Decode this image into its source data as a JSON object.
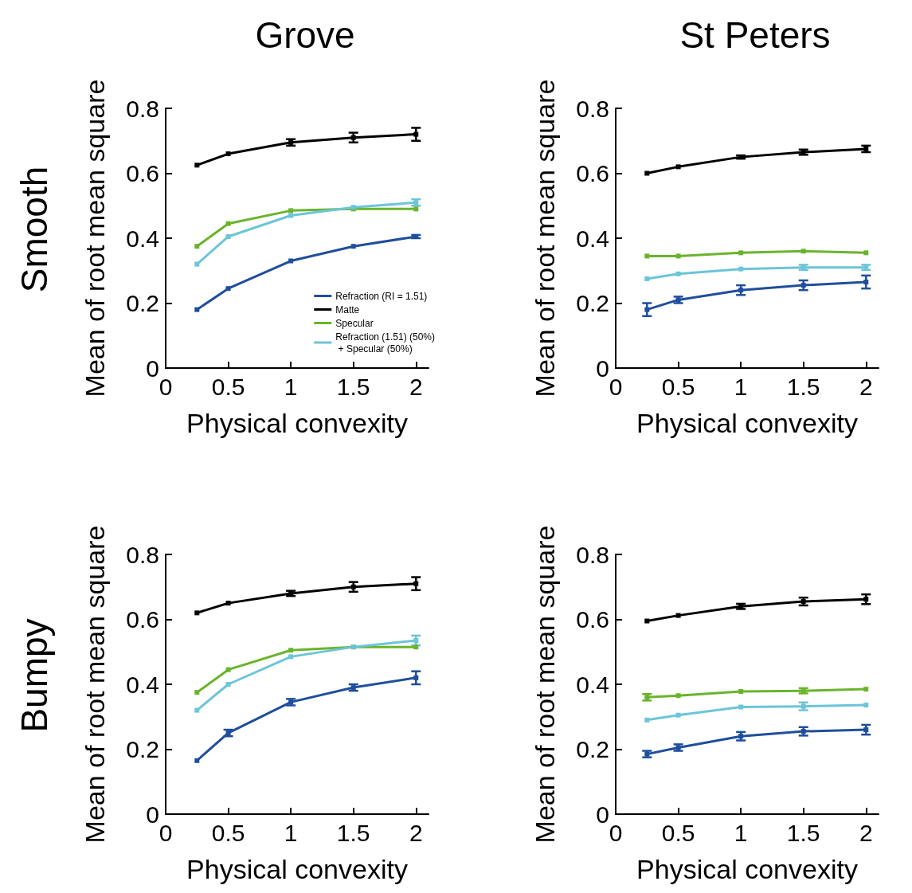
{
  "chart_data": [
    {
      "type": "line",
      "title": "Grove",
      "annotations": [
        "Smooth"
      ],
      "xlabel": "Physical convexity",
      "ylabel": "Mean of root mean square",
      "xlim": [
        0,
        2.1
      ],
      "xticks": [
        0,
        0.5,
        1,
        1.5,
        2
      ],
      "ylim": [
        0,
        0.8
      ],
      "yticks": [
        0,
        0.2,
        0.4,
        0.6,
        0.8
      ],
      "x": [
        0.25,
        0.5,
        1,
        1.5,
        2
      ],
      "marker": "square",
      "line_style": "solid",
      "grid": false,
      "legend": "bottom right",
      "series": [
        {
          "name": "Refraction (RI = 1.51)",
          "color": "#1f4e9c",
          "values": [
            0.18,
            0.245,
            0.33,
            0.375,
            0.405
          ],
          "errors": [
            null,
            null,
            null,
            null,
            0.005
          ]
        },
        {
          "name": "Matte",
          "color": "#000000",
          "values": [
            0.625,
            0.66,
            0.695,
            0.71,
            0.72
          ],
          "errors": [
            null,
            null,
            0.01,
            0.015,
            0.02
          ]
        },
        {
          "name": "Specular",
          "color": "#6ab42d",
          "values": [
            0.375,
            0.445,
            0.485,
            0.49,
            0.49
          ],
          "errors": [
            null,
            null,
            null,
            null,
            null
          ]
        },
        {
          "name": "Refraction (1.51) (50%)\n + Specular (50%)",
          "color": "#6cc5d8",
          "values": [
            0.32,
            0.405,
            0.47,
            0.495,
            0.51
          ],
          "errors": [
            null,
            null,
            null,
            null,
            0.01
          ]
        }
      ]
    },
    {
      "type": "line",
      "title": "St Peters",
      "xlabel": "Physical convexity",
      "ylabel": "Mean of root mean square",
      "xlim": [
        0,
        2.1
      ],
      "xticks": [
        0,
        0.5,
        1,
        1.5,
        2
      ],
      "ylim": [
        0,
        0.8
      ],
      "yticks": [
        0,
        0.2,
        0.4,
        0.6,
        0.8
      ],
      "x": [
        0.25,
        0.5,
        1,
        1.5,
        2
      ],
      "marker": "square",
      "line_style": "solid",
      "grid": false,
      "series": [
        {
          "color": "#1f4e9c",
          "values": [
            0.18,
            0.21,
            0.24,
            0.255,
            0.265
          ],
          "errors": [
            0.02,
            0.01,
            0.015,
            0.015,
            0.02
          ]
        },
        {
          "color": "#000000",
          "values": [
            0.6,
            0.62,
            0.65,
            0.665,
            0.675
          ],
          "errors": [
            null,
            null,
            0.005,
            0.008,
            0.01
          ]
        },
        {
          "color": "#6ab42d",
          "values": [
            0.345,
            0.345,
            0.355,
            0.36,
            0.355
          ],
          "errors": [
            null,
            null,
            null,
            null,
            null
          ]
        },
        {
          "color": "#6cc5d8",
          "values": [
            0.275,
            0.29,
            0.305,
            0.31,
            0.31
          ],
          "errors": [
            null,
            null,
            null,
            0.008,
            0.008
          ]
        }
      ]
    },
    {
      "type": "line",
      "annotations": [
        "Bumpy"
      ],
      "xlabel": "Physical convexity",
      "ylabel": "Mean of root mean square",
      "xlim": [
        0,
        2.1
      ],
      "xticks": [
        0,
        0.5,
        1,
        1.5,
        2
      ],
      "ylim": [
        0,
        0.8
      ],
      "yticks": [
        0,
        0.2,
        0.4,
        0.6,
        0.8
      ],
      "x": [
        0.25,
        0.5,
        1,
        1.5,
        2
      ],
      "marker": "square",
      "line_style": "solid",
      "grid": false,
      "series": [
        {
          "color": "#1f4e9c",
          "values": [
            0.165,
            0.25,
            0.345,
            0.39,
            0.42
          ],
          "errors": [
            null,
            0.01,
            0.01,
            0.01,
            0.02
          ]
        },
        {
          "color": "#000000",
          "values": [
            0.62,
            0.65,
            0.68,
            0.7,
            0.71
          ],
          "errors": [
            null,
            null,
            0.008,
            0.015,
            0.02
          ]
        },
        {
          "color": "#6ab42d",
          "values": [
            0.375,
            0.445,
            0.505,
            0.515,
            0.515
          ],
          "errors": [
            null,
            null,
            null,
            null,
            null
          ]
        },
        {
          "color": "#6cc5d8",
          "values": [
            0.32,
            0.4,
            0.485,
            0.515,
            0.535
          ],
          "errors": [
            null,
            null,
            null,
            null,
            0.015
          ]
        }
      ]
    },
    {
      "type": "line",
      "xlabel": "Physical convexity",
      "ylabel": "Mean of root mean square",
      "xlim": [
        0,
        2.1
      ],
      "xticks": [
        0,
        0.5,
        1,
        1.5,
        2
      ],
      "ylim": [
        0,
        0.8
      ],
      "yticks": [
        0,
        0.2,
        0.4,
        0.6,
        0.8
      ],
      "x": [
        0.25,
        0.5,
        1,
        1.5,
        2
      ],
      "marker": "square",
      "line_style": "solid",
      "grid": false,
      "series": [
        {
          "color": "#1f4e9c",
          "values": [
            0.185,
            0.205,
            0.24,
            0.255,
            0.26
          ],
          "errors": [
            0.01,
            0.01,
            0.013,
            0.013,
            0.015
          ]
        },
        {
          "color": "#000000",
          "values": [
            0.595,
            0.612,
            0.64,
            0.655,
            0.662
          ],
          "errors": [
            null,
            null,
            0.008,
            0.012,
            0.015
          ]
        },
        {
          "color": "#6ab42d",
          "values": [
            0.36,
            0.365,
            0.378,
            0.38,
            0.385
          ],
          "errors": [
            0.01,
            null,
            null,
            0.008,
            null
          ]
        },
        {
          "color": "#6cc5d8",
          "values": [
            0.29,
            0.305,
            0.33,
            0.332,
            0.336
          ],
          "errors": [
            null,
            null,
            null,
            0.012,
            null
          ]
        }
      ]
    }
  ]
}
